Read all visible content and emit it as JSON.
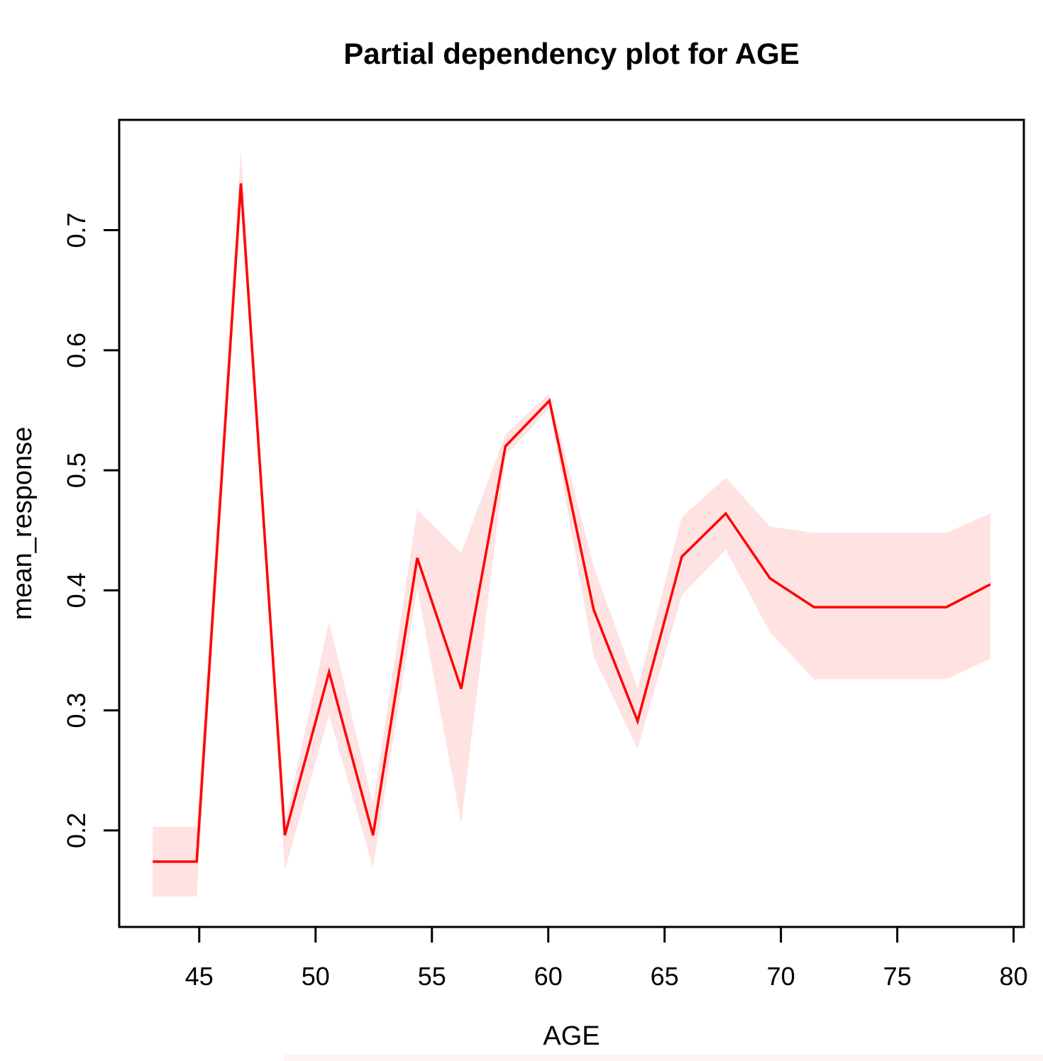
{
  "title": "Partial dependency plot for AGE",
  "chart_data": {
    "type": "line",
    "title": "Partial dependency plot for AGE",
    "xlabel": "AGE",
    "ylabel": "mean_response",
    "x_ticks": [
      45,
      50,
      55,
      60,
      65,
      70,
      75,
      80
    ],
    "y_ticks": [
      0.2,
      0.3,
      0.4,
      0.5,
      0.6,
      0.7
    ],
    "xlim": [
      41.56,
      80.44
    ],
    "ylim": [
      0.1196,
      0.7919
    ],
    "grid": false,
    "legend": "none",
    "x": [
      43.0,
      44.89,
      46.79,
      48.68,
      50.58,
      52.47,
      54.37,
      56.26,
      58.16,
      60.05,
      61.95,
      63.84,
      65.74,
      67.63,
      69.53,
      71.42,
      73.32,
      75.21,
      77.11,
      79.0
    ],
    "series": [
      {
        "name": "mean_response",
        "color": "#ff0000",
        "values": [
          0.174,
          0.174,
          0.739,
          0.196,
          0.332,
          0.196,
          0.427,
          0.318,
          0.52,
          0.558,
          0.384,
          0.291,
          0.428,
          0.464,
          0.41,
          0.386,
          0.386,
          0.386,
          0.386,
          0.405
        ]
      }
    ],
    "band": {
      "name": "confidence-band",
      "color": "rgba(255,0,0,0.115)",
      "lower": [
        0.145,
        0.145,
        0.733,
        0.167,
        0.296,
        0.169,
        0.402,
        0.206,
        0.512,
        0.552,
        0.345,
        0.268,
        0.396,
        0.434,
        0.365,
        0.326,
        0.326,
        0.326,
        0.326,
        0.343
      ],
      "upper": [
        0.203,
        0.203,
        0.767,
        0.206,
        0.374,
        0.222,
        0.467,
        0.431,
        0.53,
        0.564,
        0.42,
        0.318,
        0.461,
        0.494,
        0.453,
        0.448,
        0.448,
        0.448,
        0.448,
        0.464
      ]
    },
    "axis_color": "#000000"
  }
}
